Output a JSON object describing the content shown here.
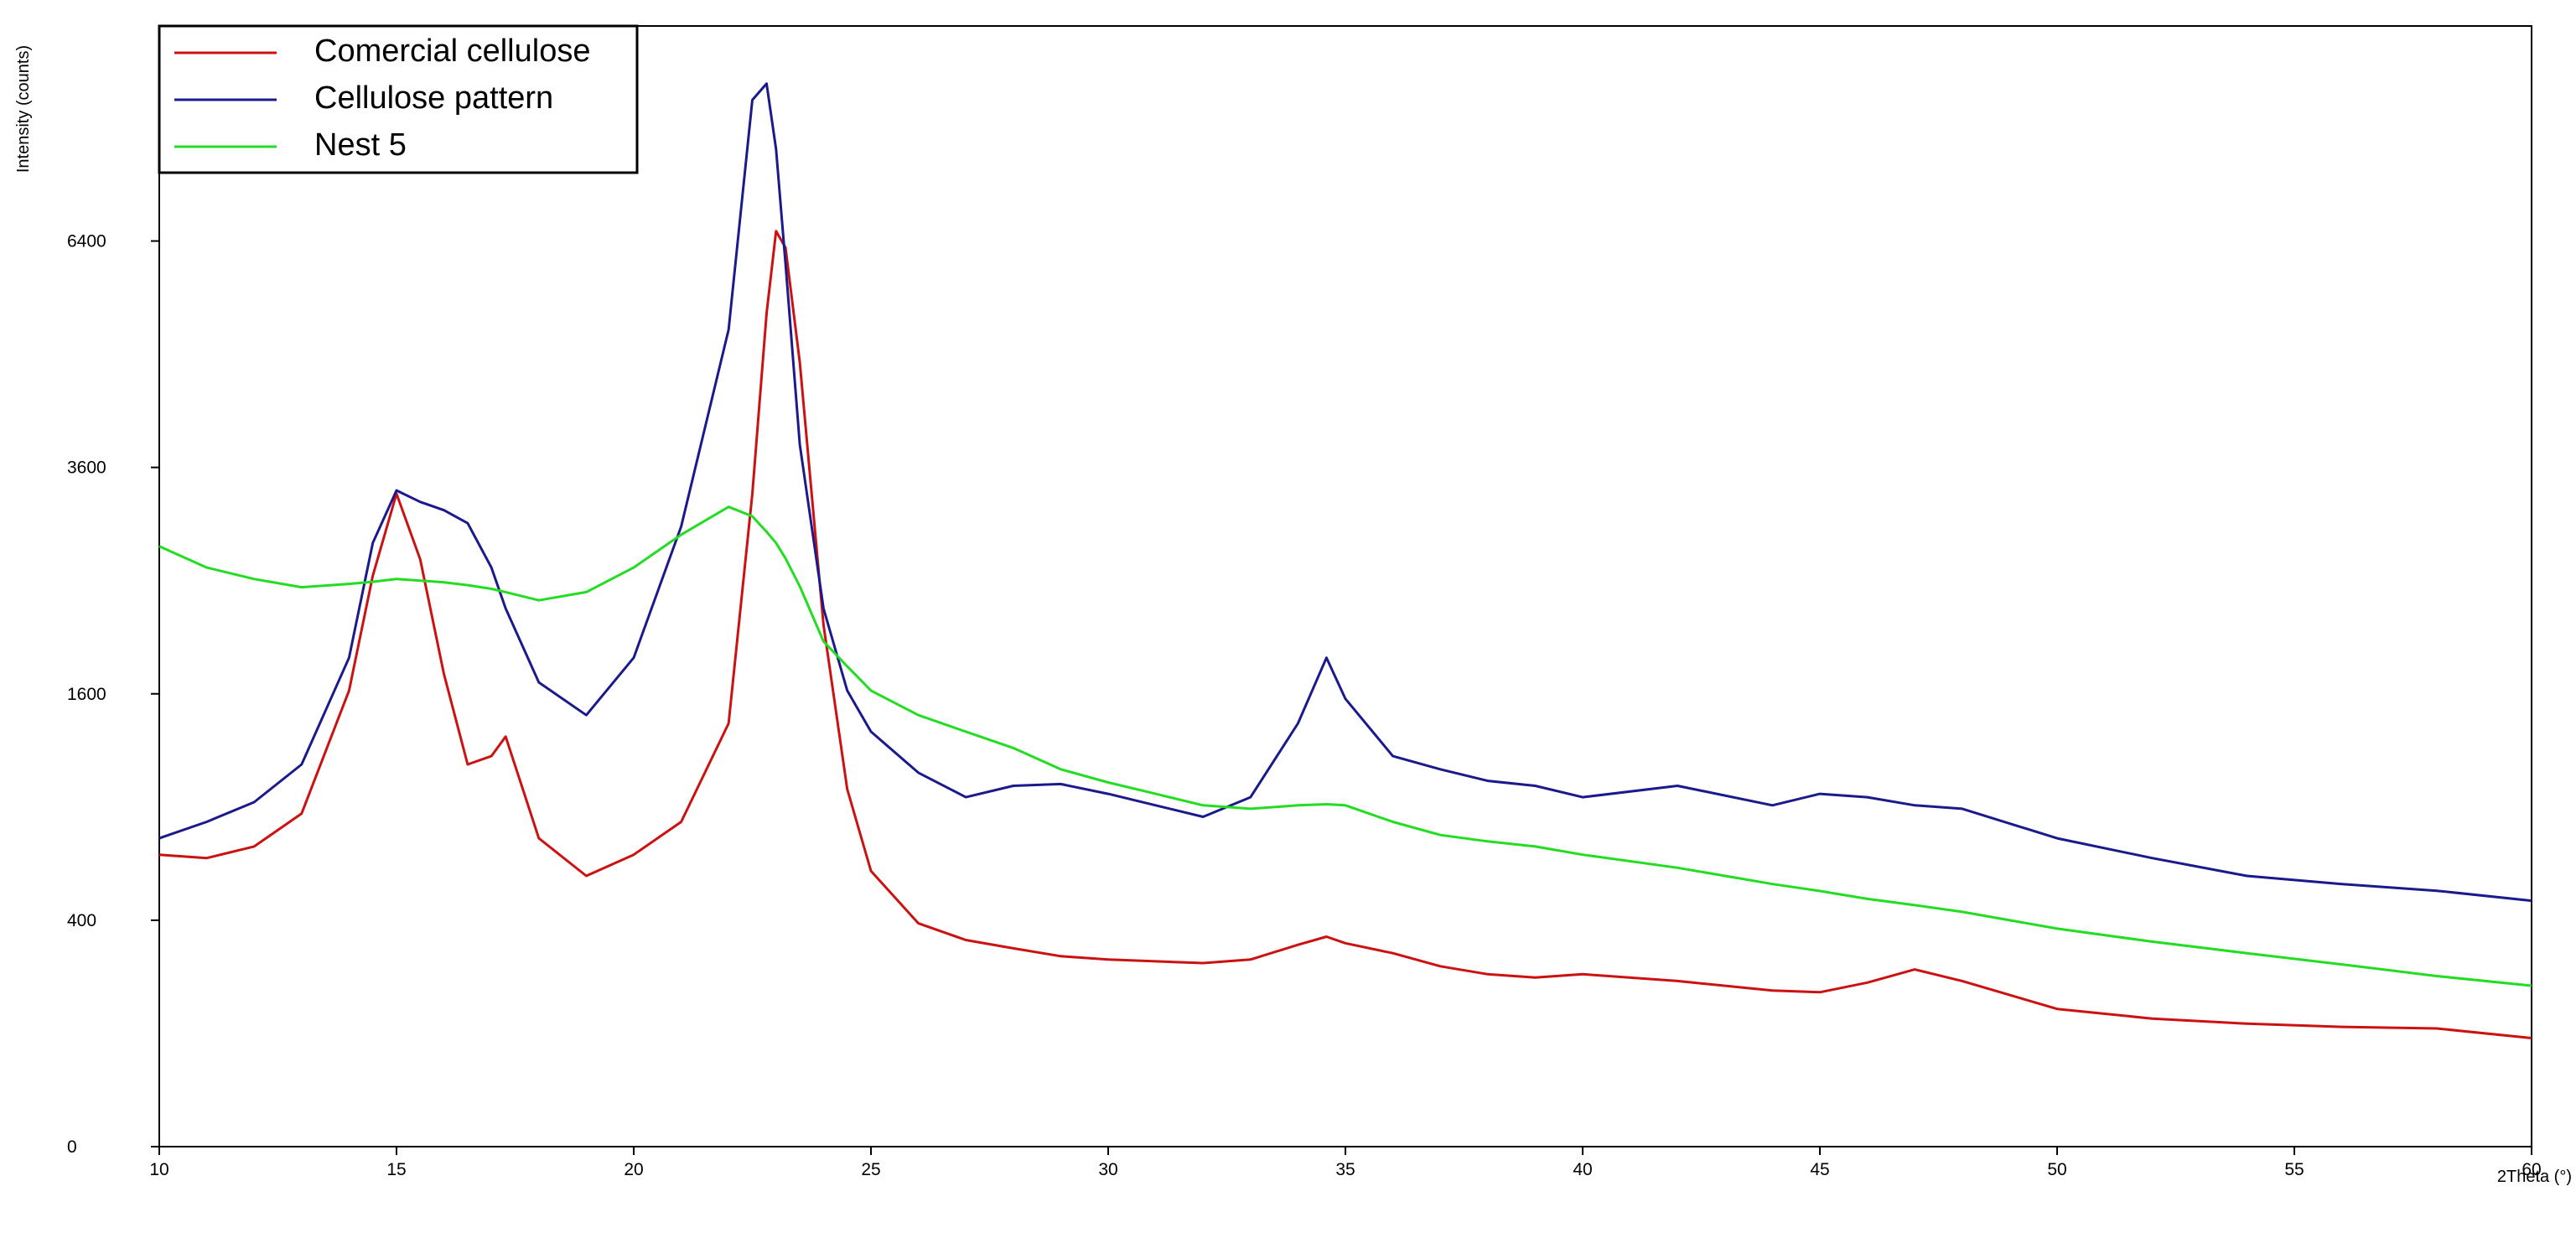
{
  "chart_data": {
    "type": "line",
    "x_label": "2Theta (°)",
    "y_label": "Intensity (counts)",
    "yscale": "sqrt",
    "xlim": [
      10,
      60
    ],
    "ylim": [
      0,
      9800
    ],
    "xticks": [
      10,
      15,
      20,
      25,
      30,
      35,
      40,
      45,
      50,
      55,
      60
    ],
    "yticks": [
      0,
      400,
      1600,
      3600,
      6400
    ],
    "legend": "upper left",
    "x": [
      10,
      11,
      12,
      13,
      14,
      14.5,
      15,
      15.5,
      16,
      16.5,
      17,
      17.3,
      18,
      19,
      20,
      21,
      22,
      22.5,
      22.8,
      23,
      23.2,
      23.5,
      24,
      24.5,
      25,
      26,
      27,
      28,
      29,
      30,
      31,
      32,
      33,
      34,
      34.6,
      35,
      36,
      37,
      38,
      39,
      40,
      42,
      44,
      45,
      46,
      47,
      48,
      50,
      52,
      54,
      56,
      58,
      60
    ],
    "series": [
      {
        "name": "Comercial cellulose",
        "color": "#cc1111",
        "values": [
          665,
          650,
          703,
          866,
          1623,
          2543,
          3327,
          2691,
          1742,
          1140,
          1190,
          1312,
          742,
          572,
          665,
          823,
          1398,
          3327,
          5420,
          6540,
          6306,
          4800,
          2124,
          997,
          593,
          389,
          333,
          307,
          283,
          273,
          268,
          263,
          273,
          318,
          344,
          323,
          292,
          254,
          232,
          223,
          232,
          214,
          190,
          186,
          210,
          245,
          214,
          148,
          128,
          118,
          112,
          109,
          92
        ]
      },
      {
        "name": "Cellulose pattern",
        "color": "#1a1a8c",
        "values": [
          742,
          823,
          926,
          1140,
          1865,
          2844,
          3360,
          3244,
          3161,
          3033,
          2617,
          2260,
          1682,
          1453,
          1865,
          3001,
          5210,
          8550,
          8818,
          7763,
          6080,
          3847,
          2260,
          1623,
          1344,
          1091,
          953,
          1016,
          1026,
          971,
          909,
          849,
          953,
          1398,
          1865,
          1565,
          1190,
          1111,
          1044,
          1016,
          953,
          1016,
          909,
          971,
          953,
          909,
          891,
          742,
          650,
          572,
          538,
          511,
          472
        ]
      },
      {
        "name": "Nest 5",
        "color": "#22dd22",
        "values": [
          2813,
          2617,
          2514,
          2442,
          2471,
          2490,
          2514,
          2500,
          2485,
          2460,
          2428,
          2400,
          2329,
          2400,
          2617,
          2922,
          3194,
          3100,
          2950,
          2844,
          2700,
          2450,
          1992,
          1800,
          1623,
          1453,
          1344,
          1240,
          1111,
          1035,
          971,
          909,
          891,
          909,
          915,
          909,
          823,
          758,
          727,
          703,
          665,
          607,
          538,
          510,
          479,
          455,
          430,
          371,
          328,
          292,
          259,
          227,
          202
        ]
      }
    ]
  }
}
